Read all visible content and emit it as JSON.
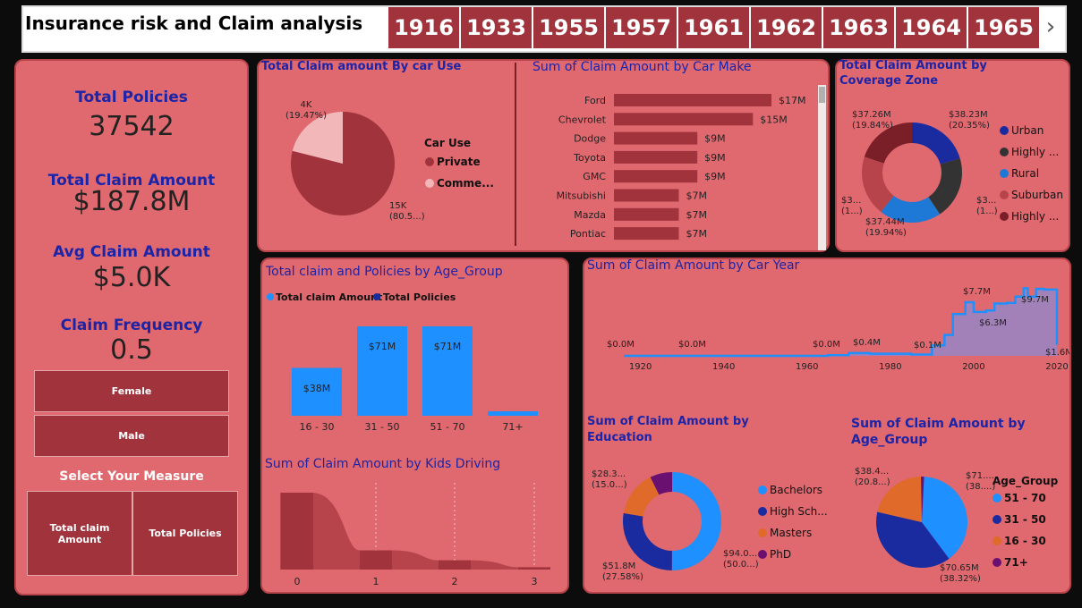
{
  "header": {
    "title": "Insurance risk and Claim analysis",
    "years": [
      "1916",
      "1933",
      "1955",
      "1957",
      "1961",
      "1962",
      "1963",
      "1964",
      "1965"
    ],
    "next_glyph": "›"
  },
  "kpis": {
    "total_policies_label": "Total Policies",
    "total_policies_value": "37542",
    "total_claim_label": "Total Claim Amount",
    "total_claim_value": "$187.8M",
    "avg_claim_label": "Avg Claim Amount",
    "avg_claim_value": "$5.0K",
    "claim_freq_label": "Claim Frequency",
    "claim_freq_value": "0.5"
  },
  "gender_slicer": {
    "female": "Female",
    "male": "Male"
  },
  "measure_selector": {
    "title": "Select Your Measure",
    "option1": "Total claim Amount",
    "option2": "Total Policies"
  },
  "colors": {
    "panel_bg": "#e0686f",
    "dark_red": "#a0333c",
    "title_blue": "#1c24a8",
    "bright_blue": "#1e90ff",
    "navy": "#1a2ba0",
    "orange": "#e06a2a",
    "purple": "#6a1070"
  },
  "chart_data": [
    {
      "id": "car_use",
      "type": "pie",
      "title": "Total Claim amount By car Use",
      "legend_title": "Car Use",
      "categories": [
        "Private",
        "Comme..."
      ],
      "values": [
        15000,
        4000
      ],
      "labels": [
        {
          "line1": "15K",
          "line2": "(80.5...)"
        },
        {
          "line1": "4K",
          "line2": "(19.47%)"
        }
      ],
      "colors": [
        "#a0333c",
        "#f1b7b9"
      ]
    },
    {
      "id": "car_make",
      "type": "bar",
      "title": "Sum of Claim Amount by Car Make",
      "categories": [
        "Ford",
        "Chevrolet",
        "Dodge",
        "Toyota",
        "GMC",
        "Mitsubishi",
        "Mazda",
        "Pontiac"
      ],
      "values": [
        17,
        15,
        9,
        9,
        9,
        7,
        7,
        7
      ],
      "value_labels": [
        "$17M",
        "$15M",
        "$9M",
        "$9M",
        "$9M",
        "$7M",
        "$7M",
        "$7M"
      ],
      "unit": "$M"
    },
    {
      "id": "coverage_zone",
      "type": "pie",
      "title": "Total Claim Amount by Coverage Zone",
      "categories": [
        "Urban",
        "Highly ...",
        "Rural",
        "Suburban",
        "Highly ..."
      ],
      "values": [
        38.23,
        37.8,
        37.44,
        36.5,
        37.26
      ],
      "labels": [
        {
          "line1": "$38.23M",
          "line2": "(20.35%)"
        },
        {
          "line1": "$3...",
          "line2": "(1...)"
        },
        {
          "line1": "$37.44M",
          "line2": "(19.94%)"
        },
        {
          "line1": "$3...",
          "line2": "(1...)"
        },
        {
          "line1": "$37.26M",
          "line2": "(19.84%)"
        }
      ],
      "colors": [
        "#1a2ba0",
        "#333333",
        "#1e78d6",
        "#b8444b",
        "#7a1f27"
      ]
    },
    {
      "id": "age_group_bar",
      "type": "bar",
      "title": "Total claim and Policies by Age_Group",
      "legend": [
        "Total claim Amount",
        "Total Policies"
      ],
      "categories": [
        "16 - 30",
        "31 - 50",
        "51 - 70",
        "71+"
      ],
      "values": [
        38,
        71,
        71,
        2
      ],
      "value_labels": [
        "$38M",
        "$71M",
        "$71M",
        ""
      ],
      "unit": "$M"
    },
    {
      "id": "car_year",
      "type": "area",
      "title": "Sum of Claim Amount by Car Year",
      "x": [
        1916,
        1920,
        1933,
        1940,
        1955,
        1960,
        1965,
        1970,
        1975,
        1980,
        1985,
        1990,
        1993,
        1995,
        1998,
        2000,
        2003,
        2005,
        2008,
        2010,
        2012,
        2013,
        2015,
        2017,
        2020
      ],
      "y": [
        0.0,
        0.0,
        0.0,
        0.0,
        0.0,
        0.0,
        0.1,
        0.4,
        0.3,
        0.3,
        0.2,
        1.5,
        3.0,
        6.0,
        7.7,
        6.3,
        6.5,
        7.5,
        7.6,
        8.5,
        9.7,
        8.5,
        9.6,
        9.5,
        1.6
      ],
      "annotations": [
        "$0.0M",
        "$0.0M",
        "$0.0M",
        "$0.4M",
        "$0.1M",
        "$7.7M",
        "$6.3M",
        "$9.7M",
        "$1.6M"
      ],
      "xticks": [
        "1920",
        "1940",
        "1960",
        "1980",
        "2000",
        "2020"
      ]
    },
    {
      "id": "education",
      "type": "pie",
      "title": "Sum of Claim Amount by Education",
      "categories": [
        "Bachelors",
        "High Sch...",
        "Masters",
        "PhD"
      ],
      "values": [
        94.0,
        51.8,
        28.3,
        13.7
      ],
      "labels": [
        {
          "line1": "$94.0...",
          "line2": "(50.0...)"
        },
        {
          "line1": "$51.8M",
          "line2": "(27.58%)"
        },
        {
          "line1": "$28.3...",
          "line2": "(15.0...)"
        }
      ],
      "colors": [
        "#1e90ff",
        "#1a2ba0",
        "#e06a2a",
        "#6a1070"
      ]
    },
    {
      "id": "kids_driving",
      "type": "area",
      "title": "Sum of Claim Amount by Kids Driving",
      "categories": [
        "0",
        "1",
        "2",
        "3"
      ],
      "values": [
        100,
        25,
        12,
        3
      ]
    },
    {
      "id": "age_group_pie",
      "type": "pie",
      "title": "Sum of Claim Amount by Age_Group",
      "legend_title": "Age_Group",
      "categories": [
        "51 - 70",
        "31 - 50",
        "16 - 30",
        "71+"
      ],
      "values": [
        71.0,
        70.65,
        38.4,
        2.0
      ],
      "labels": [
        {
          "line1": "$71....",
          "line2": "(38....)"
        },
        {
          "line1": "$70.65M",
          "line2": "(38.32%)"
        },
        {
          "line1": "$38.4...",
          "line2": "(20.8...)"
        }
      ],
      "colors": [
        "#1e90ff",
        "#1a2ba0",
        "#e06a2a",
        "#6a1070"
      ]
    }
  ]
}
